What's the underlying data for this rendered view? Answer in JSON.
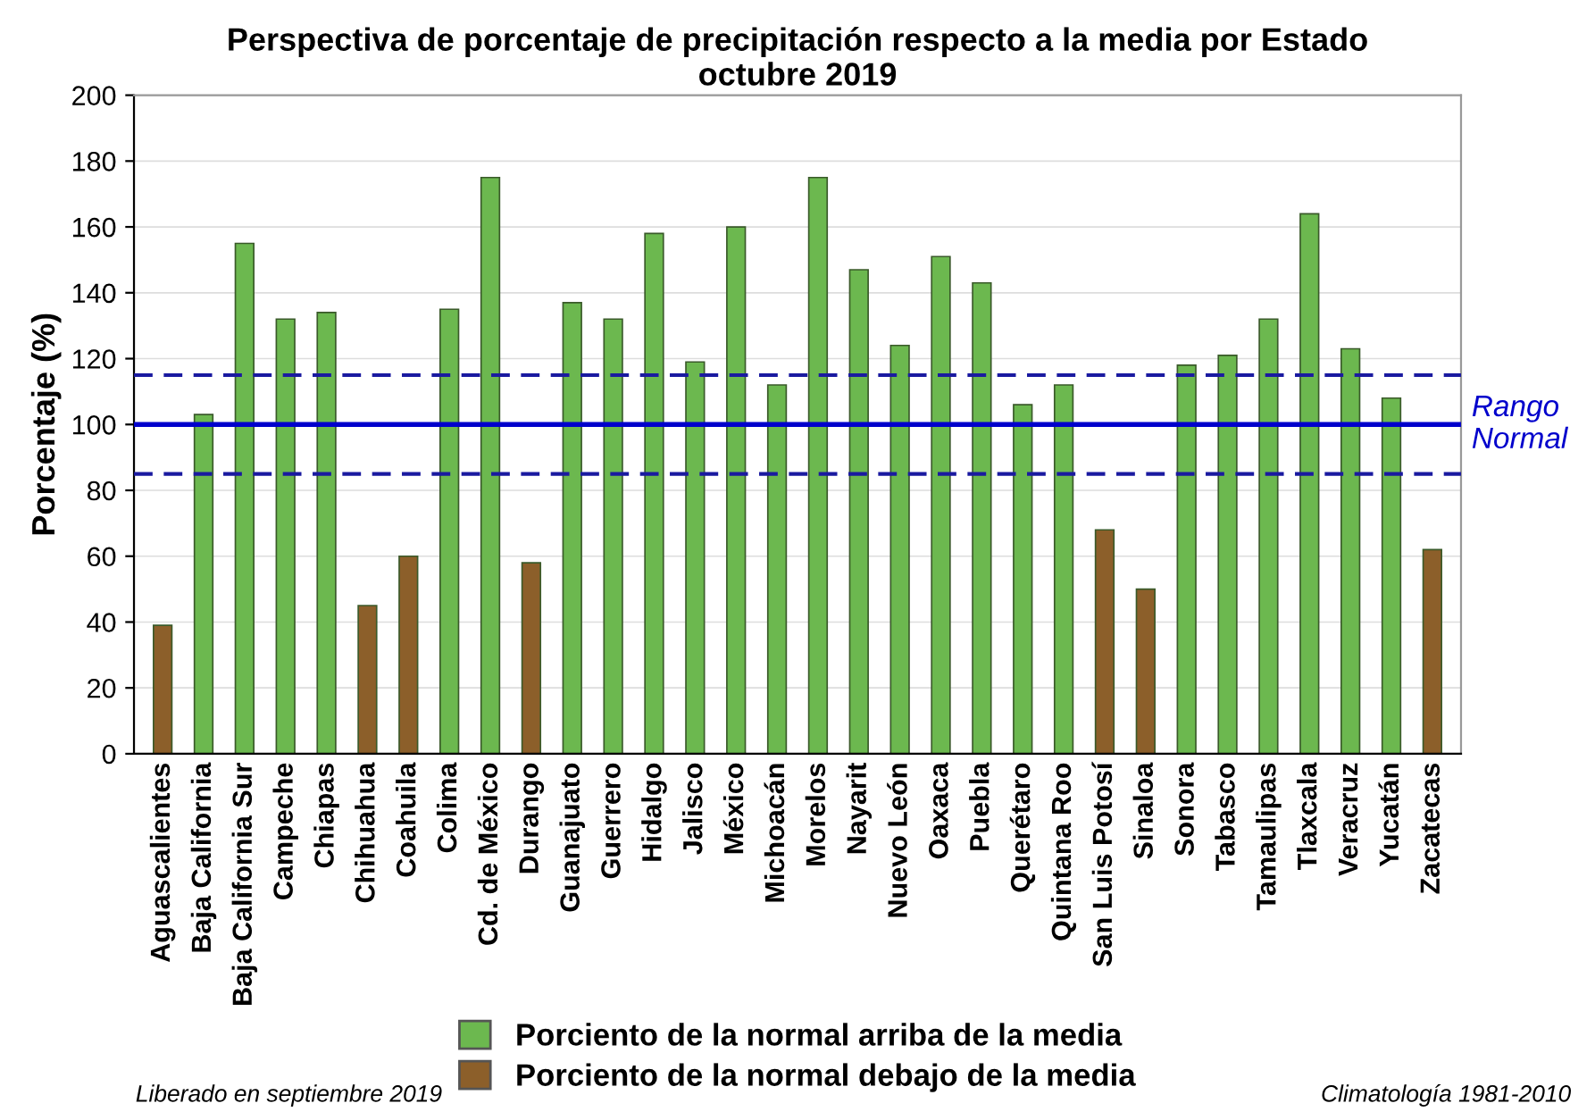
{
  "chart_data": {
    "type": "bar",
    "title": "Perspectiva de porcentaje de precipitación respecto a la media por Estado\noctubre 2019",
    "ylabel": "Porcentaje (%)",
    "categories": [
      "Aguascalientes",
      "Baja California",
      "Baja California Sur",
      "Campeche",
      "Chiapas",
      "Chihuahua",
      "Coahuila",
      "Colima",
      "Cd. de México",
      "Durango",
      "Guanajuato",
      "Guerrero",
      "Hidalgo",
      "Jalisco",
      "México",
      "Michoacán",
      "Morelos",
      "Nayarit",
      "Nuevo León",
      "Oaxaca",
      "Puebla",
      "Querétaro",
      "Quintana Roo",
      "San Luis Potosí",
      "Sinaloa",
      "Sonora",
      "Tabasco",
      "Tamaulipas",
      "Tlaxcala",
      "Veracruz",
      "Yucatán",
      "Zacatecas"
    ],
    "series": [
      {
        "name": "Porciento de la normal arriba de la media",
        "color": "#6cb84f",
        "values": [
          null,
          103,
          155,
          132,
          134,
          null,
          null,
          135,
          175,
          null,
          137,
          132,
          158,
          119,
          160,
          112,
          175,
          147,
          124,
          151,
          143,
          106,
          112,
          null,
          null,
          118,
          121,
          132,
          164,
          123,
          108,
          null
        ]
      },
      {
        "name": "Porciento de la normal debajo de la media",
        "color": "#8c5f2a",
        "values": [
          39,
          null,
          null,
          null,
          null,
          45,
          60,
          null,
          null,
          58,
          null,
          null,
          null,
          null,
          null,
          null,
          null,
          null,
          null,
          null,
          null,
          null,
          null,
          68,
          50,
          null,
          null,
          null,
          null,
          null,
          null,
          62
        ]
      }
    ],
    "ylim": [
      0,
      200
    ],
    "yticks": [
      0,
      20,
      40,
      60,
      80,
      100,
      120,
      140,
      160,
      180,
      200
    ],
    "grid": "y",
    "legend": "bottom",
    "ref_lines": [
      {
        "axis": "y",
        "value": 100,
        "label": "Rango Normal",
        "color": "#0000cc",
        "line_style": "solid"
      },
      {
        "axis": "y",
        "value": 115,
        "color": "#1a1aa0",
        "line_style": "dashed"
      },
      {
        "axis": "y",
        "value": 85,
        "color": "#1a1aa0",
        "line_style": "dashed"
      }
    ],
    "annotations": [
      "Liberado en septiembre 2019",
      "Climatología 1981-2010"
    ]
  }
}
